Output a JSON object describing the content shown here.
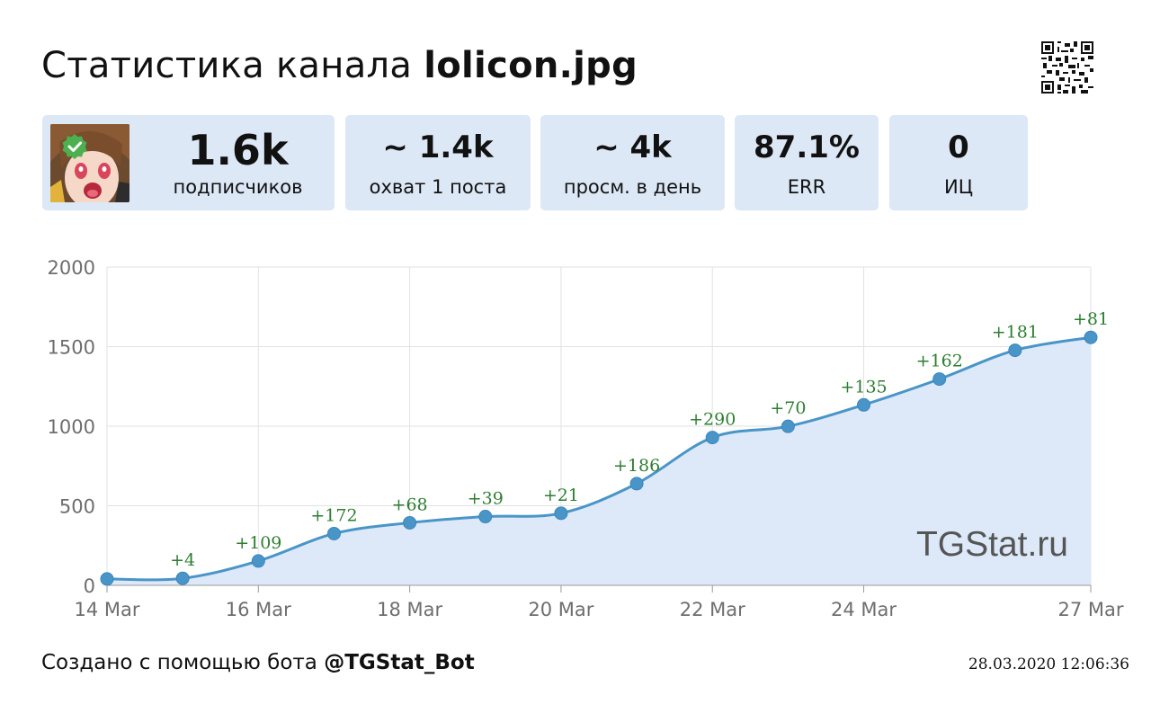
{
  "header": {
    "title_prefix": "Статистика канала",
    "channel_name": "lolicon.jpg",
    "qr_icon": "qr-code-icon"
  },
  "stats": [
    {
      "value": "1.6k",
      "label": "подписчиков"
    },
    {
      "value": "~ 1.4k",
      "label": "охват 1 поста"
    },
    {
      "value": "~ 4k",
      "label": "просм. в день"
    },
    {
      "value": "87.1%",
      "label": "ERR"
    },
    {
      "value": "0",
      "label": "ИЦ"
    }
  ],
  "avatar": {
    "icon": "channel-avatar",
    "badge_icon": "verified-check-icon",
    "badge_color": "#4caf50"
  },
  "chart_data": {
    "type": "area",
    "x_ticks": [
      "14 Mar",
      "16 Mar",
      "18 Mar",
      "20 Mar",
      "22 Mar",
      "24 Mar",
      "27 Mar"
    ],
    "y_ticks": [
      "0",
      "500",
      "1000",
      "1500",
      "2000"
    ],
    "ylim": [
      0,
      2000
    ],
    "x_dates": [
      "14 Mar",
      "15 Mar",
      "16 Mar",
      "17 Mar",
      "18 Mar",
      "19 Mar",
      "20 Mar",
      "21 Mar",
      "22 Mar",
      "23 Mar",
      "24 Mar",
      "25 Mar",
      "26 Mar",
      "27 Mar"
    ],
    "values": [
      40,
      44,
      153,
      325,
      393,
      432,
      453,
      639,
      929,
      999,
      1134,
      1296,
      1477,
      1558
    ],
    "deltas": [
      "",
      "+4",
      "+109",
      "+172",
      "+68",
      "+39",
      "+21",
      "+186",
      "+290",
      "+70",
      "+135",
      "+162",
      "+181",
      "+81"
    ],
    "watermark": "TGStat.ru",
    "grid": true,
    "colors": {
      "line": "#4a95c8",
      "fill": "#dde9f8",
      "delta": "#2e7d32",
      "point": "#4a95c8"
    }
  },
  "footer": {
    "created_prefix": "Создано с помощью бота",
    "bot_name": "@TGStat_Bot",
    "timestamp": "28.03.2020 12:06:36"
  }
}
